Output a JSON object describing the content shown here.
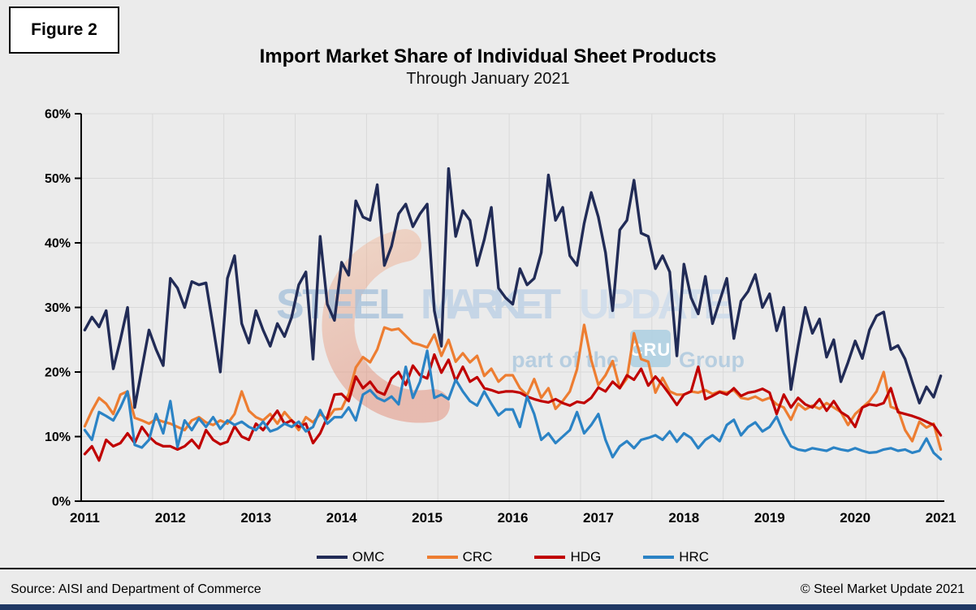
{
  "figure_label": "Figure 2",
  "title": "Import Market Share of Individual Sheet Products",
  "subtitle": "Through January 2021",
  "watermark": {
    "steel": "STEEL",
    "market": "MARKET",
    "update": "UPDATE",
    "part_of_the": "part of the",
    "cru": "CRU",
    "group": "Group"
  },
  "footer": {
    "source": "Source: AISI and Department of Commerce",
    "copyright": "© Steel Market Update 2021"
  },
  "colors": {
    "background": "#EBEBEB",
    "gridline": "#D9D9D9",
    "axis": "#000000",
    "bottom_bar": "#203864",
    "watermark_blue": "#A8C2DB",
    "watermark_crescent": "#E98F66"
  },
  "chart_data": {
    "type": "line",
    "title": "Import Market Share of Individual Sheet Products",
    "subtitle": "Through January 2021",
    "x_interval": "monthly",
    "x_start": "2011-01",
    "x_end": "2021-01",
    "x_tick_labels": [
      "2011",
      "2012",
      "2013",
      "2014",
      "2015",
      "2016",
      "2017",
      "2018",
      "2019",
      "2020",
      "2021"
    ],
    "y_ticks": [
      "0%",
      "10%",
      "20%",
      "30%",
      "40%",
      "50%",
      "60%"
    ],
    "ylim": [
      0,
      60
    ],
    "grid": true,
    "legend_position": "bottom",
    "series": [
      {
        "name": "OMC",
        "color": "#212B56",
        "values": [
          26.5,
          28.5,
          27.0,
          29.5,
          20.5,
          25.0,
          30.0,
          14.5,
          20.5,
          26.5,
          23.5,
          21.0,
          34.5,
          33.0,
          30.0,
          34.0,
          33.5,
          33.8,
          27.0,
          20.0,
          34.5,
          38.0,
          27.5,
          24.5,
          29.5,
          26.5,
          24.0,
          27.5,
          25.5,
          28.5,
          33.5,
          35.5,
          22.0,
          41.0,
          30.5,
          28.0,
          37.0,
          35.0,
          46.5,
          44.0,
          43.5,
          49.0,
          36.5,
          39.5,
          44.5,
          46.0,
          42.5,
          44.5,
          46.0,
          29.5,
          24.0,
          51.5,
          41.0,
          45.0,
          43.5,
          36.5,
          40.5,
          45.5,
          33.0,
          31.5,
          30.5,
          36.0,
          33.5,
          34.5,
          38.5,
          50.5,
          43.5,
          45.5,
          38.0,
          36.5,
          43.0,
          47.8,
          44.0,
          38.5,
          29.5,
          42.0,
          43.5,
          49.7,
          41.5,
          41.0,
          36.0,
          38.0,
          35.5,
          22.5,
          36.7,
          31.5,
          29.0,
          34.8,
          27.5,
          31.0,
          34.5,
          25.2,
          31.0,
          32.5,
          35.1,
          30.0,
          32.1,
          26.4,
          30.0,
          17.3,
          24.0,
          30.0,
          26.0,
          28.2,
          22.3,
          25.0,
          18.5,
          21.5,
          24.8,
          22.1,
          26.5,
          28.7,
          29.3,
          23.5,
          24.1,
          22.0,
          18.5,
          15.2,
          17.7,
          16.1,
          19.4
        ]
      },
      {
        "name": "CRC",
        "color": "#ED7D31",
        "values": [
          11.6,
          14.0,
          16.0,
          15.1,
          13.5,
          16.5,
          17.0,
          12.9,
          12.5,
          12.0,
          12.7,
          12.3,
          12.0,
          11.5,
          11.0,
          12.5,
          13.0,
          12.2,
          11.8,
          12.5,
          12.0,
          13.5,
          17.0,
          14.0,
          13.0,
          12.5,
          13.5,
          12.0,
          13.8,
          12.5,
          11.0,
          13.0,
          12.2,
          13.5,
          12.7,
          14.2,
          14.3,
          16.6,
          20.7,
          22.3,
          21.5,
          23.5,
          26.9,
          26.5,
          26.7,
          25.6,
          24.5,
          24.2,
          23.8,
          25.8,
          22.5,
          25.0,
          21.6,
          22.9,
          21.5,
          22.5,
          19.4,
          20.5,
          18.5,
          19.5,
          19.5,
          17.5,
          16.4,
          18.9,
          16.0,
          17.5,
          14.3,
          15.5,
          17.0,
          20.4,
          27.3,
          21.9,
          18.0,
          19.5,
          21.7,
          17.5,
          19.0,
          26.0,
          22.0,
          21.6,
          16.8,
          19.1,
          17.0,
          16.5,
          16.5,
          17.0,
          16.8,
          17.2,
          16.6,
          17.0,
          16.8,
          17.2,
          16.0,
          15.8,
          16.2,
          15.6,
          16.0,
          15.0,
          14.5,
          12.6,
          15.1,
          14.2,
          14.8,
          14.3,
          15.2,
          14.5,
          13.8,
          11.8,
          13.5,
          14.5,
          15.5,
          17.0,
          20.0,
          14.6,
          14.2,
          11.0,
          9.3,
          12.3,
          11.4,
          12.0,
          8.0
        ]
      },
      {
        "name": "HDG",
        "color": "#C00000",
        "values": [
          7.3,
          8.5,
          6.3,
          9.5,
          8.5,
          9.0,
          10.5,
          9.0,
          11.5,
          10.0,
          9.0,
          8.5,
          8.5,
          8.0,
          8.5,
          9.5,
          8.2,
          11.0,
          9.5,
          8.8,
          9.2,
          11.6,
          10.0,
          9.5,
          12.0,
          11.0,
          12.5,
          14.0,
          12.0,
          12.5,
          11.5,
          12.0,
          9.0,
          10.5,
          13.0,
          16.5,
          16.6,
          15.5,
          19.3,
          17.5,
          18.5,
          17.0,
          16.5,
          19.0,
          20.0,
          18.0,
          21.0,
          19.5,
          19.0,
          22.7,
          19.9,
          21.9,
          18.6,
          20.8,
          18.5,
          19.2,
          17.5,
          17.2,
          16.8,
          17.0,
          17.0,
          16.8,
          16.2,
          15.8,
          15.5,
          15.3,
          15.8,
          15.2,
          14.8,
          15.4,
          15.2,
          16.0,
          17.6,
          17.0,
          18.5,
          17.5,
          19.5,
          18.8,
          20.5,
          17.9,
          19.3,
          18.0,
          16.5,
          14.9,
          16.5,
          17.0,
          20.8,
          15.8,
          16.3,
          16.9,
          16.5,
          17.5,
          16.3,
          16.8,
          17.0,
          17.4,
          16.8,
          13.5,
          16.5,
          14.5,
          16.0,
          15.0,
          14.5,
          15.8,
          14.0,
          15.5,
          13.8,
          13.1,
          11.5,
          14.5,
          15.0,
          14.8,
          15.2,
          17.5,
          13.8,
          13.5,
          13.2,
          12.8,
          12.3,
          11.8,
          10.2
        ]
      },
      {
        "name": "HRC",
        "color": "#2B83C5",
        "values": [
          11.0,
          9.5,
          13.8,
          13.2,
          12.5,
          14.5,
          17.0,
          8.7,
          8.3,
          9.5,
          13.5,
          10.5,
          15.5,
          8.4,
          12.5,
          11.0,
          12.8,
          11.5,
          13.0,
          11.2,
          12.5,
          11.8,
          12.3,
          11.5,
          11.0,
          12.3,
          10.8,
          11.2,
          12.0,
          11.5,
          12.3,
          10.8,
          11.5,
          14.1,
          12.0,
          13.0,
          13.0,
          14.5,
          12.5,
          16.5,
          17.2,
          16.0,
          15.5,
          16.2,
          15.0,
          20.8,
          16.0,
          18.5,
          23.3,
          16.0,
          16.5,
          15.8,
          18.8,
          17.0,
          15.5,
          14.8,
          17.0,
          15.1,
          13.3,
          14.2,
          14.2,
          11.5,
          16.2,
          13.5,
          9.5,
          10.5,
          9.0,
          10.0,
          11.0,
          13.8,
          10.5,
          11.8,
          13.5,
          9.5,
          6.8,
          8.5,
          9.3,
          8.2,
          9.5,
          9.8,
          10.2,
          9.5,
          10.8,
          9.2,
          10.5,
          9.8,
          8.2,
          9.5,
          10.2,
          9.3,
          11.8,
          12.6,
          10.2,
          11.5,
          12.2,
          10.8,
          11.5,
          13.1,
          10.5,
          8.5,
          8.0,
          7.8,
          8.2,
          8.0,
          7.8,
          8.3,
          8.0,
          7.8,
          8.2,
          7.8,
          7.5,
          7.6,
          8.0,
          8.2,
          7.8,
          8.0,
          7.5,
          7.8,
          9.7,
          7.5,
          6.5
        ]
      }
    ]
  }
}
